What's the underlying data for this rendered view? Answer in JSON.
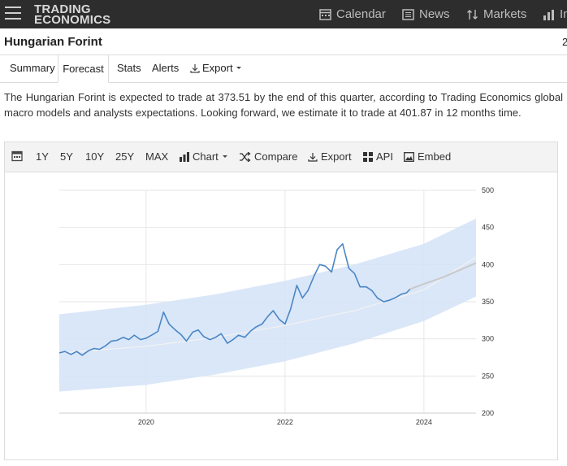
{
  "nav": {
    "logo_line1": "TRADING",
    "logo_line2": "ECONOMICS",
    "items": [
      {
        "label": "Calendar",
        "icon": "calendar-icon"
      },
      {
        "label": "News",
        "icon": "news-icon"
      },
      {
        "label": "Markets",
        "icon": "markets-icon"
      },
      {
        "label": "In",
        "icon": "indicators-icon"
      }
    ]
  },
  "page": {
    "title": "Hungarian Forint",
    "title_right": "2"
  },
  "tabs": [
    {
      "label": "Summary"
    },
    {
      "label": "Forecast"
    },
    {
      "label": "Stats"
    },
    {
      "label": "Alerts"
    },
    {
      "label": "Export"
    }
  ],
  "description": "The Hungarian Forint is expected to trade at 373.51 by the end of this quarter, according to Trading Economics global macro models and analysts expectations. Looking forward, we estimate it to trade at 401.87 in 12 months time.",
  "toolbar": {
    "ranges": [
      "1Y",
      "5Y",
      "10Y",
      "25Y",
      "MAX"
    ],
    "chart_label": "Chart",
    "compare_label": "Compare",
    "export_label": "Export",
    "api_label": "API",
    "embed_label": "Embed"
  },
  "chart_data": {
    "type": "line",
    "x_ticks": [
      "2020",
      "2022",
      "2024"
    ],
    "y_ticks": [
      200,
      250,
      300,
      350,
      400,
      450,
      500
    ],
    "ylim": [
      200,
      500
    ],
    "xlim": [
      2018.75,
      2024.75
    ],
    "colors": {
      "series": "#4a86c5",
      "band": "#d3e3f7",
      "forecast": "#c9c9c9",
      "trend": "#f2f2f2"
    },
    "series": [
      {
        "x": [
          2018.75,
          2018.83,
          2018.92,
          2019.0,
          2019.08,
          2019.17,
          2019.25,
          2019.33,
          2019.42,
          2019.5,
          2019.58,
          2019.67,
          2019.75,
          2019.83,
          2019.92,
          2020.0,
          2020.08,
          2020.17,
          2020.25,
          2020.33,
          2020.42,
          2020.5,
          2020.58,
          2020.67,
          2020.75,
          2020.83,
          2020.92,
          2021.0,
          2021.08,
          2021.17,
          2021.25,
          2021.33,
          2021.42,
          2021.5,
          2021.58,
          2021.67,
          2021.75,
          2021.83,
          2021.92,
          2022.0,
          2022.08,
          2022.17,
          2022.25,
          2022.33,
          2022.42,
          2022.5,
          2022.58,
          2022.67,
          2022.75,
          2022.83,
          2022.92,
          2023.0,
          2023.08,
          2023.17,
          2023.25,
          2023.33,
          2023.42,
          2023.5,
          2023.58,
          2023.67,
          2023.75,
          2023.8
        ],
        "y": [
          281,
          283,
          279,
          283,
          278,
          284,
          287,
          286,
          291,
          297,
          298,
          302,
          299,
          305,
          299,
          301,
          305,
          310,
          336,
          320,
          312,
          306,
          297,
          309,
          312,
          303,
          299,
          302,
          307,
          294,
          299,
          305,
          302,
          310,
          316,
          320,
          330,
          338,
          326,
          320,
          340,
          372,
          355,
          365,
          385,
          400,
          398,
          390,
          420,
          428,
          395,
          388,
          370,
          370,
          365,
          355,
          350,
          352,
          355,
          360,
          362,
          367
        ]
      }
    ],
    "forecast": {
      "x": [
        2023.8,
        2024.0,
        2024.25,
        2024.5,
        2024.75
      ],
      "y": [
        367,
        374,
        382,
        392,
        402
      ]
    },
    "band": {
      "x": [
        2018.75,
        2020.0,
        2021.0,
        2022.0,
        2023.0,
        2024.0,
        2024.75
      ],
      "upper": [
        333,
        346,
        360,
        378,
        400,
        428,
        462
      ],
      "lower": [
        229,
        238,
        252,
        270,
        294,
        324,
        357
      ]
    },
    "trend": {
      "x": [
        2018.75,
        2020.0,
        2021.0,
        2022.0,
        2023.0,
        2024.0,
        2024.75
      ],
      "y": [
        281,
        290,
        302,
        318,
        338,
        366,
        410
      ]
    }
  }
}
